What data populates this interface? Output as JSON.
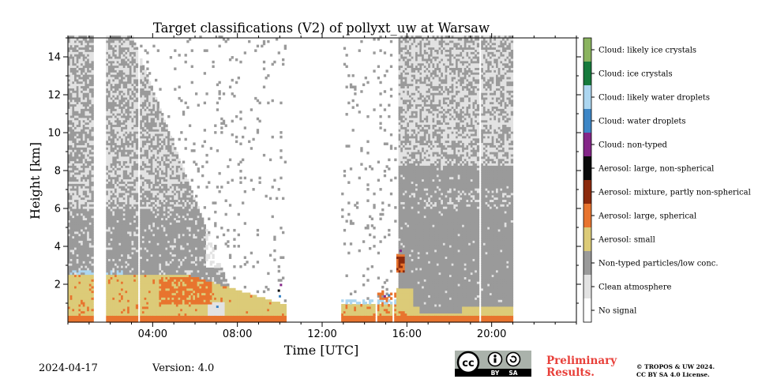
{
  "chart_data": {
    "type": "heatmap",
    "title": "Target classifications (V2) of pollyxt_uw at Warsaw",
    "xlabel": "Time [UTC]",
    "ylabel": "Height [km]",
    "xlim_hours": [
      0,
      24
    ],
    "ylim_km": [
      0,
      15
    ],
    "x_ticks": [
      "04:00",
      "08:00",
      "12:00",
      "16:00",
      "20:00"
    ],
    "x_tick_hours": [
      4,
      8,
      12,
      16,
      20
    ],
    "y_ticks": [
      2,
      4,
      6,
      8,
      10,
      12,
      14
    ],
    "legend_placement": "right colorbar",
    "classes": [
      {
        "label": "No signal",
        "color": "#ffffff"
      },
      {
        "label": "Clean atmosphere",
        "color": "#e2e2e2"
      },
      {
        "label": "Non-typed particles/low conc.",
        "color": "#9a9a9a"
      },
      {
        "label": "Aerosol: small",
        "color": "#dccb78"
      },
      {
        "label": "Aerosol: large, spherical",
        "color": "#e8742e"
      },
      {
        "label": "Aerosol: mixture, partly non-spherical",
        "color": "#8c2a0d"
      },
      {
        "label": "Aerosol: large, non-spherical",
        "color": "#0a0a0a"
      },
      {
        "label": "Cloud: non-typed",
        "color": "#842688"
      },
      {
        "label": "Cloud: water droplets",
        "color": "#3d86c6"
      },
      {
        "label": "Cloud: likely water droplets",
        "color": "#acd6f0"
      },
      {
        "label": "Cloud: ice crystals",
        "color": "#167a3c"
      },
      {
        "label": "Cloud: likely ice crystals",
        "color": "#8ab35f"
      }
    ],
    "data_coverage_hours": [
      0,
      21
    ],
    "regions": [
      {
        "class": "Non-typed particles/low conc.",
        "from_h": 0,
        "to_h": 21,
        "from_km": 2.5,
        "to_km": 15
      },
      {
        "class": "Aerosol: small",
        "from_h": 0,
        "to_h": 20.9,
        "from_km": 0,
        "to_km": 2.5
      },
      {
        "class": "Aerosol: large, spherical",
        "from_h": 4.5,
        "to_h": 6.5,
        "from_km": 1.2,
        "to_km": 2.4
      },
      {
        "class": "Clean atmosphere",
        "from_h": 0,
        "to_h": 9.5,
        "from_km": 6,
        "to_km": 15
      },
      {
        "class": "No signal",
        "from_h": 10.2,
        "to_h": 15.2,
        "from_km": 0,
        "to_km": 15
      }
    ]
  },
  "footer": {
    "date": "2024-04-17",
    "version": "Version: 4.0",
    "preliminary_line1": "Preliminary",
    "preliminary_line2": "Results.",
    "copyright_line1": "© TROPOS & UW 2024.",
    "copyright_line2": "CC BY SA 4.0 License.",
    "cc_badge": {
      "cc": "cc",
      "by": "BY",
      "sa": "SA"
    }
  }
}
